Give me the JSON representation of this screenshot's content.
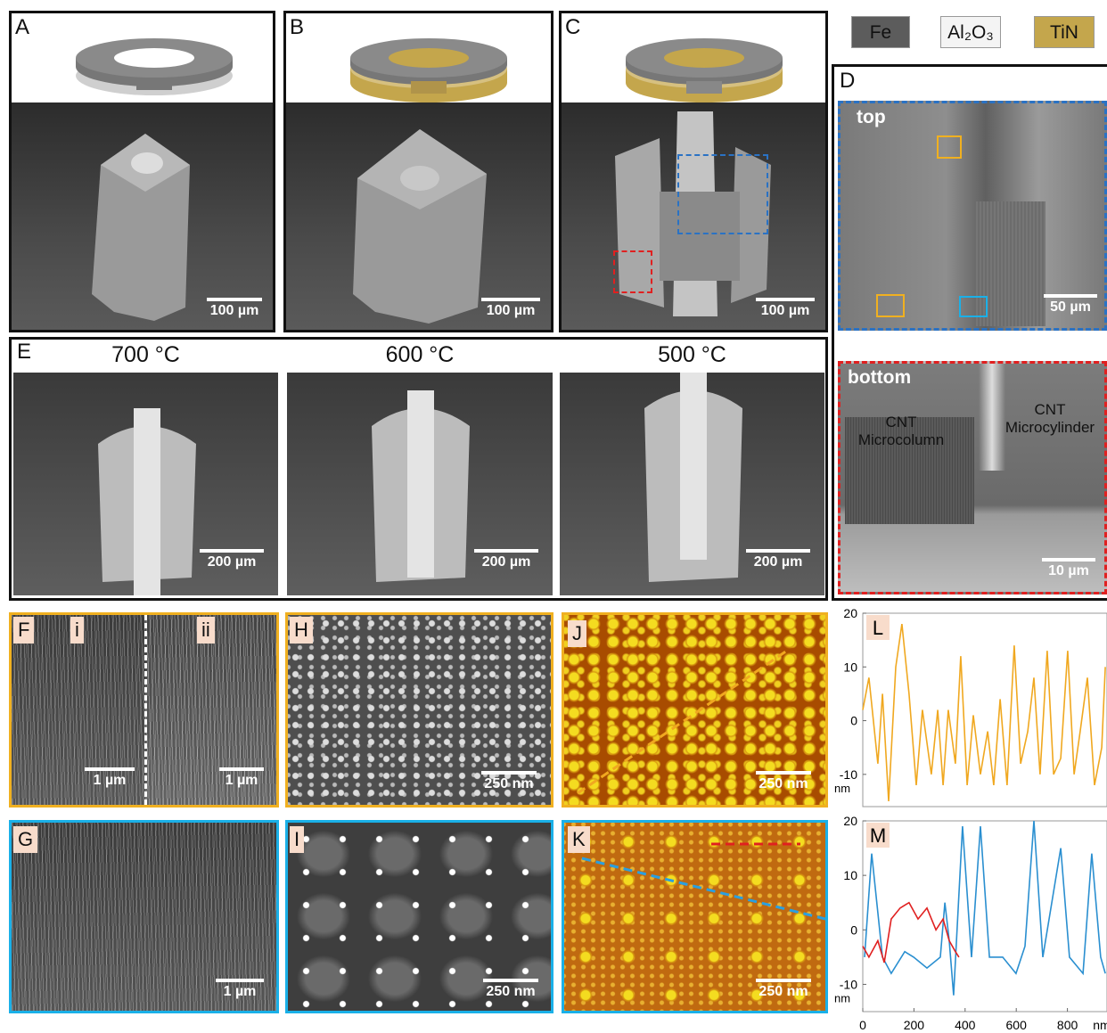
{
  "legend": {
    "fe": "Fe",
    "al2o3": "Al₂O₃",
    "tin": "TiN"
  },
  "panels": {
    "a": {
      "label": "A",
      "scale_bar": "100 µm"
    },
    "b": {
      "label": "B",
      "scale_bar": "100 µm"
    },
    "c": {
      "label": "C",
      "scale_bar": "100 µm"
    },
    "d": {
      "label": "D",
      "top": "top",
      "top_scale_bar": "50 µm",
      "bottom": "bottom",
      "bottom_left": "CNT Microcolumn",
      "bottom_right": "CNT Microcylinder",
      "bottom_scale_bar": "10 µm"
    },
    "e": {
      "label": "E",
      "images": [
        {
          "title": "700 °C",
          "scale_bar": "200 µm"
        },
        {
          "title": "600 °C",
          "scale_bar": "200 µm"
        },
        {
          "title": "500 °C",
          "scale_bar": "200 µm"
        }
      ]
    },
    "f": {
      "label": "F",
      "sub_i": "i",
      "sub_ii": "ii",
      "scale_bar_i": "1 µm",
      "scale_bar_ii": "1 µm"
    },
    "g": {
      "label": "G",
      "scale_bar": "1 µm"
    },
    "h": {
      "label": "H",
      "scale_bar": "250 nm"
    },
    "i": {
      "label": "I",
      "scale_bar": "250 nm"
    },
    "j": {
      "label": "J",
      "scale_bar": "250 nm"
    },
    "k": {
      "label": "K",
      "scale_bar": "250 nm"
    }
  },
  "chart_data": [
    {
      "type": "line",
      "label": "L",
      "y_unit": "nm",
      "xlim": [
        0,
        950
      ],
      "ylim": [
        -16,
        20
      ],
      "yticks": [
        20,
        10,
        0,
        -10
      ],
      "series": [
        {
          "color": "#f0a820",
          "x": [
            0,
            24,
            59,
            77,
            101,
            129,
            153,
            181,
            209,
            233,
            268,
            293,
            314,
            334,
            362,
            383,
            408,
            432,
            460,
            488,
            512,
            537,
            564,
            592,
            617,
            645,
            669,
            693,
            721,
            746,
            774,
            801,
            826,
            850,
            878,
            906,
            934,
            948
          ],
          "values": [
            2,
            8,
            -8,
            5,
            -15,
            10,
            18,
            5,
            -12,
            2,
            -10,
            2,
            -12,
            2,
            -8,
            12,
            -12,
            1,
            -10,
            -2,
            -12,
            4,
            -12,
            14,
            -8,
            -2,
            8,
            -10,
            13,
            -10,
            -7,
            13,
            -10,
            -2,
            8,
            -12,
            -5,
            10
          ]
        }
      ]
    },
    {
      "type": "line",
      "label": "M",
      "y_unit": "nm",
      "x_unit": "nm",
      "xlim": [
        0,
        950
      ],
      "ylim": [
        -15,
        20
      ],
      "xticks": [
        0,
        200,
        400,
        600,
        800
      ],
      "yticks": [
        20,
        10,
        0,
        -10
      ],
      "series": [
        {
          "color": "#2a8fd0",
          "x": [
            7,
            35,
            77,
            111,
            164,
            199,
            251,
            303,
            321,
            338,
            355,
            390,
            425,
            460,
            495,
            547,
            599,
            634,
            669,
            704,
            774,
            808,
            861,
            895,
            930,
            948
          ],
          "values": [
            -5,
            14,
            -5,
            -8,
            -4,
            -5,
            -7,
            -5,
            5,
            -2,
            -12,
            19,
            -5,
            19,
            -5,
            -5,
            -8,
            -3,
            20,
            -5,
            15,
            -5,
            -8,
            14,
            -5,
            -8
          ]
        },
        {
          "color": "#e02020",
          "x": [
            0,
            24,
            59,
            84,
            111,
            146,
            181,
            216,
            251,
            286,
            314,
            338,
            362,
            376
          ],
          "values": [
            -3,
            -5,
            -2,
            -6,
            2,
            4,
            5,
            2,
            4,
            0,
            2,
            -2,
            -4,
            -5
          ]
        }
      ]
    }
  ]
}
